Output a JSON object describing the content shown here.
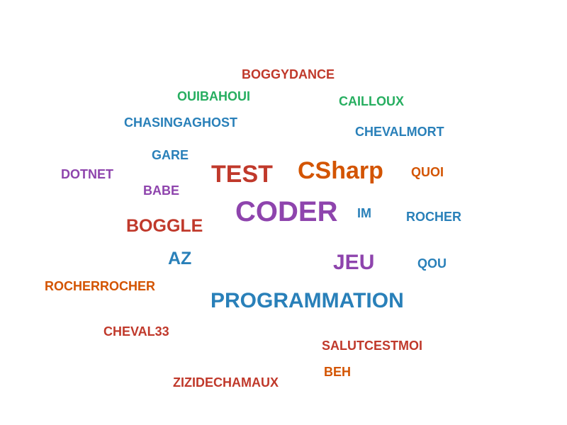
{
  "palette": {
    "red": "#c0392b",
    "green": "#27ae60",
    "blue": "#2980b9",
    "purple": "#8e44ad",
    "orange": "#d35400"
  },
  "words": [
    {
      "text": "BOGGYDANCE",
      "color": "#c0392b"
    },
    {
      "text": "OUIBAHOUI",
      "color": "#27ae60"
    },
    {
      "text": "CAILLOUX",
      "color": "#27ae60"
    },
    {
      "text": "CHASINGAGHOST",
      "color": "#2980b9"
    },
    {
      "text": "CHEVALMORT",
      "color": "#2980b9"
    },
    {
      "text": "GARE",
      "color": "#2980b9"
    },
    {
      "text": "DOTNET",
      "color": "#8e44ad"
    },
    {
      "text": "TEST",
      "color": "#c0392b"
    },
    {
      "text": "CSharp",
      "color": "#d35400"
    },
    {
      "text": "QUOI",
      "color": "#d35400"
    },
    {
      "text": "BABE",
      "color": "#8e44ad"
    },
    {
      "text": "CODER",
      "color": "#8e44ad"
    },
    {
      "text": "IM",
      "color": "#2980b9"
    },
    {
      "text": "ROCHER",
      "color": "#2980b9"
    },
    {
      "text": "BOGGLE",
      "color": "#c0392b"
    },
    {
      "text": "AZ",
      "color": "#2980b9"
    },
    {
      "text": "JEU",
      "color": "#8e44ad"
    },
    {
      "text": "QOU",
      "color": "#2980b9"
    },
    {
      "text": "ROCHERROCHER",
      "color": "#d35400"
    },
    {
      "text": "PROGRAMMATION",
      "color": "#2980b9"
    },
    {
      "text": "CHEVAL33",
      "color": "#c0392b"
    },
    {
      "text": "SALUTCESTMOI",
      "color": "#c0392b"
    },
    {
      "text": "BEH",
      "color": "#d35400"
    },
    {
      "text": "ZIZIDECHAMAUX",
      "color": "#c0392b"
    }
  ]
}
